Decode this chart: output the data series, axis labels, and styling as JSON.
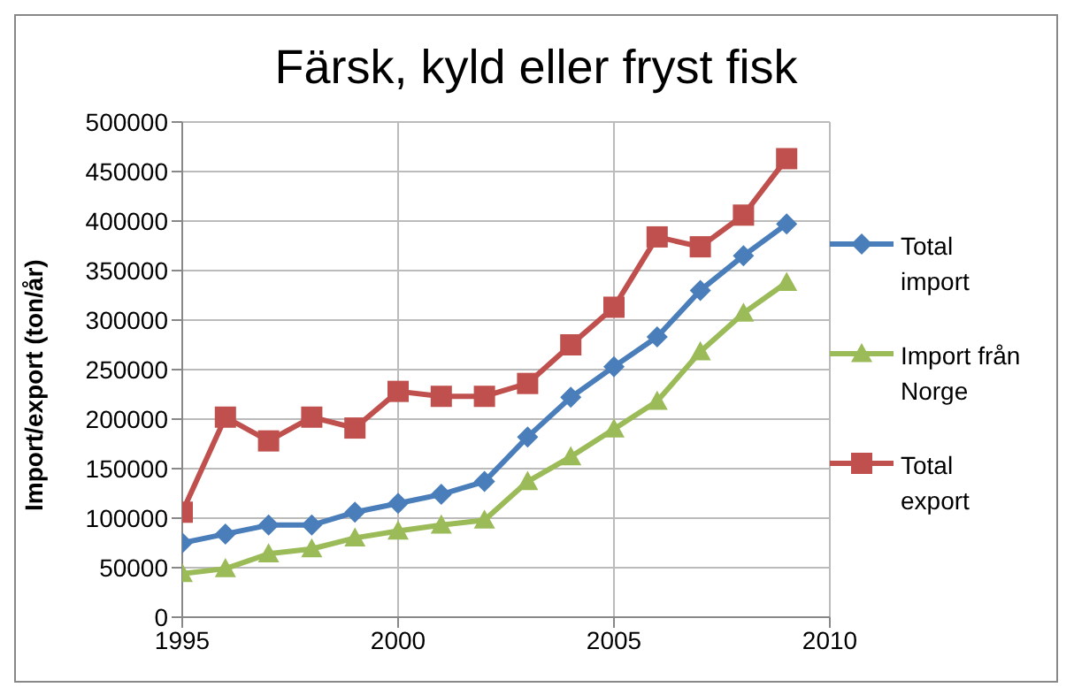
{
  "chart_data": {
    "type": "line",
    "title": "Färsk, kyld eller fryst fisk",
    "ylabel": "Import/export (ton/år)",
    "x": [
      1995,
      1996,
      1997,
      1998,
      1999,
      2000,
      2001,
      2002,
      2003,
      2004,
      2005,
      2006,
      2007,
      2008,
      2009
    ],
    "series": [
      {
        "name": "Total import",
        "color": "#4a7ebb",
        "marker": "diamond",
        "values": [
          75000,
          84000,
          93000,
          93000,
          106000,
          115000,
          124000,
          137000,
          182000,
          222000,
          253000,
          283000,
          330000,
          365000,
          397000
        ]
      },
      {
        "name": "Import från Norge",
        "color": "#9bbb59",
        "marker": "triangle",
        "values": [
          44000,
          49000,
          64000,
          69000,
          80000,
          87000,
          93000,
          98000,
          137000,
          162000,
          190000,
          218000,
          268000,
          307000,
          338000
        ]
      },
      {
        "name": "Total export",
        "color": "#c0504d",
        "marker": "square",
        "values": [
          106000,
          202000,
          178000,
          202000,
          191000,
          228000,
          223000,
          223000,
          236000,
          275000,
          313000,
          384000,
          374000,
          406000,
          463000
        ]
      }
    ],
    "xlim": [
      1995,
      2010
    ],
    "xticks": [
      1995,
      2000,
      2005,
      2010
    ],
    "ylim": [
      0,
      500000
    ],
    "yticks": [
      0,
      50000,
      100000,
      150000,
      200000,
      250000,
      300000,
      350000,
      400000,
      450000,
      500000
    ],
    "grid": true,
    "legend": "right",
    "line_style": "solid"
  }
}
